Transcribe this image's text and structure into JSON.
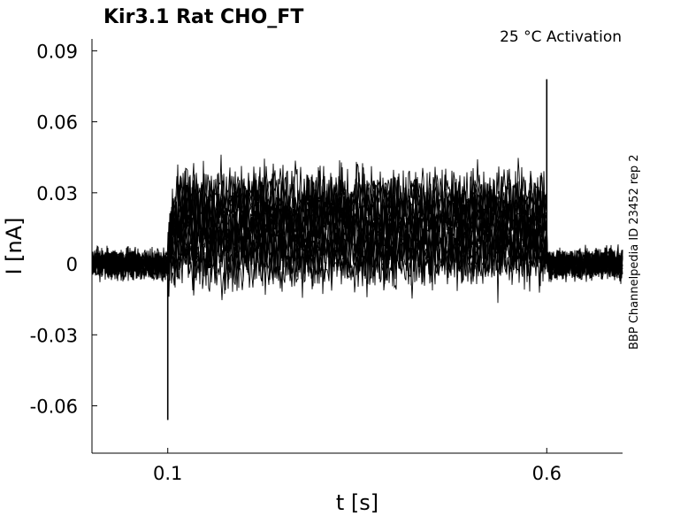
{
  "chart_data": {
    "type": "line",
    "title": "Kir3.1  Rat  CHO_FT",
    "annotation": "25 °C  Activation",
    "side_note": "BBP Channelpedia ID 23452 rep 2",
    "xlabel": "t [s]",
    "ylabel": "I [nA]",
    "xlim": [
      0.0,
      0.7
    ],
    "ylim": [
      -0.08,
      0.095
    ],
    "x_ticks": [
      0.1,
      0.6
    ],
    "x_tick_labels": [
      "0.1",
      "0.6"
    ],
    "y_ticks": [
      0.09,
      0.06,
      0.03,
      0,
      -0.03,
      -0.06
    ],
    "y_tick_labels": [
      "0.09",
      "0.06",
      "0.03",
      "0",
      "-0.03",
      "-0.06"
    ],
    "grid": false,
    "line_color": "#000000",
    "pulse_start": 0.1,
    "pulse_end": 0.6,
    "spikes": [
      {
        "x": 0.1,
        "y": -0.066
      },
      {
        "x": 0.6,
        "y": 0.078
      }
    ],
    "series": [
      {
        "plateau": 0.03
      },
      {
        "plateau": 0.028
      },
      {
        "plateau": 0.026
      },
      {
        "plateau": 0.024
      },
      {
        "plateau": 0.022
      },
      {
        "plateau": 0.02
      },
      {
        "plateau": 0.018
      },
      {
        "plateau": 0.016
      },
      {
        "plateau": 0.014
      },
      {
        "plateau": 0.012
      },
      {
        "plateau": 0.01
      },
      {
        "plateau": 0.008
      },
      {
        "plateau": 0.006
      },
      {
        "plateau": 0.004
      },
      {
        "plateau": 0.002
      },
      {
        "plateau": 0.0
      }
    ]
  }
}
